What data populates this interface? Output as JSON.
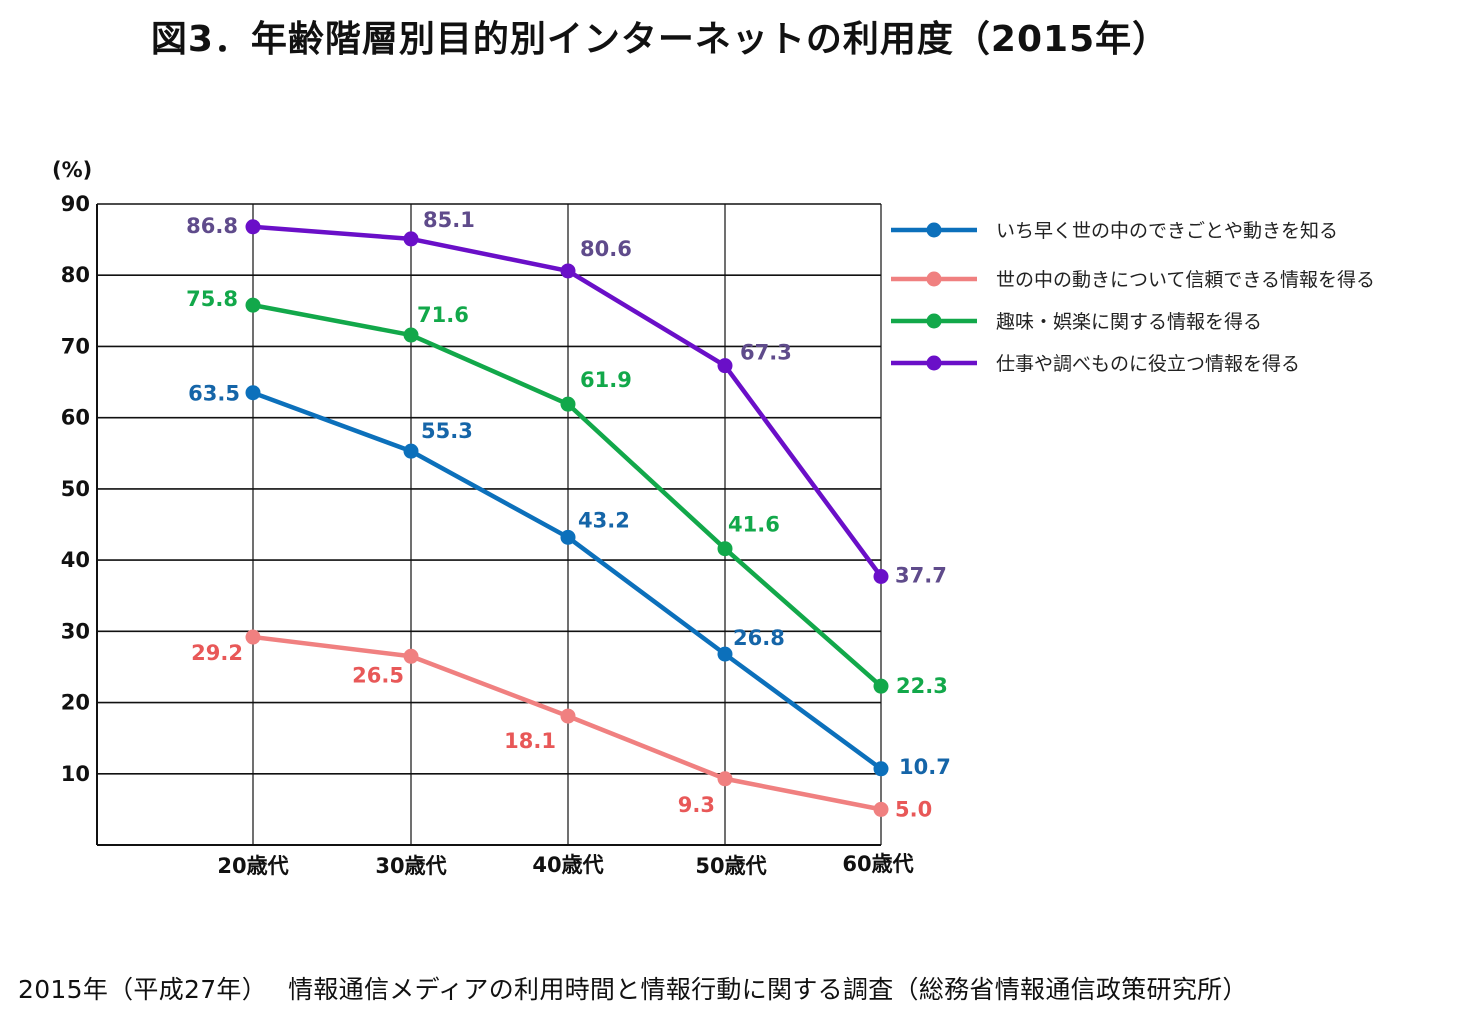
{
  "title": "図3．年齢階層別目的別インターネットの利用度（2015年）",
  "source": "2015年（平成27年）　 情報通信メディアの利用時間と情報行動に関する調査（総務省情報通信政策研究所）",
  "chart_data": {
    "type": "line",
    "title": "図3．年齢階層別目的別インターネットの利用度（2015年）",
    "y_unit": "(%)",
    "categories": [
      "20歳代",
      "30歳代",
      "40歳代",
      "50歳代",
      "60歳代"
    ],
    "y_ticks": [
      10,
      20,
      30,
      40,
      50,
      60,
      70,
      80,
      90
    ],
    "ylim": [
      0,
      90
    ],
    "grid": true,
    "legend_position": "top-right",
    "series": [
      {
        "name": "いち早く世の中のできごとや動きを知る",
        "color": "#0c70bb",
        "label_color": "#1565a8",
        "values": [
          63.5,
          55.3,
          43.2,
          26.8,
          10.7
        ],
        "labels": [
          "63.5",
          "55.3",
          "43.2",
          "26.8",
          "10.7"
        ]
      },
      {
        "name": "世の中の動きについて信頼できる情報を得る",
        "color": "#f08080",
        "label_color": "#e85858",
        "values": [
          29.2,
          26.5,
          18.1,
          9.3,
          5.0
        ],
        "labels": [
          "29.2",
          "26.5",
          "18.1",
          "9.3",
          "5.0"
        ]
      },
      {
        "name": "趣味・娯楽に関する情報を得る",
        "color": "#12a84a",
        "label_color": "#12a84a",
        "values": [
          75.8,
          71.6,
          61.9,
          41.6,
          22.3
        ],
        "labels": [
          "75.8",
          "71.6",
          "61.9",
          "41.6",
          "22.3"
        ]
      },
      {
        "name": "仕事や調べものに役立つ情報を得る",
        "color": "#6a0fc8",
        "label_color": "#5f4b8b",
        "values": [
          86.8,
          85.1,
          80.6,
          67.3,
          37.7
        ],
        "labels": [
          "86.8",
          "85.1",
          "80.6",
          "67.3",
          "37.7"
        ]
      }
    ]
  }
}
